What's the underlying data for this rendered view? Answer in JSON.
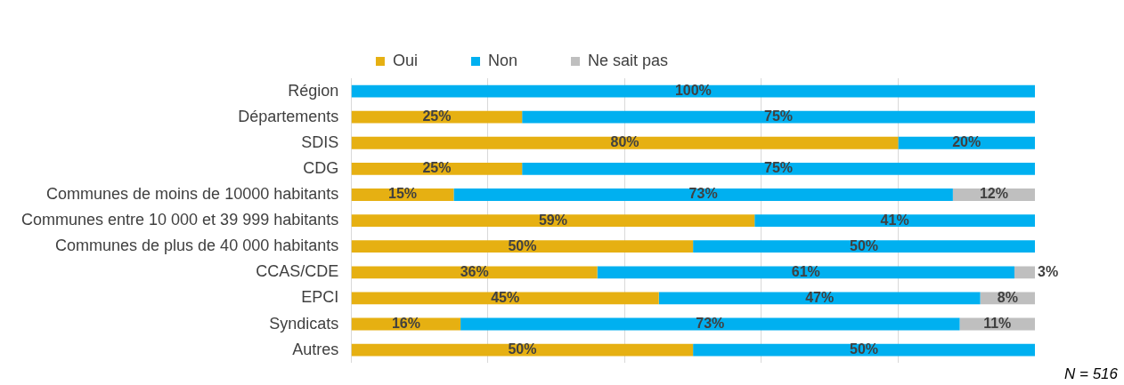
{
  "chart_data": {
    "type": "bar",
    "orientation": "horizontal",
    "stacked": true,
    "categories": [
      "Région",
      "Départements",
      "SDIS",
      "CDG",
      "Communes de moins de 10000 habitants",
      "Communes entre 10 000 et 39 999 habitants",
      "Communes de plus de 40 000 habitants",
      "CCAS/CDE",
      "EPCI",
      "Syndicats",
      "Autres"
    ],
    "series": [
      {
        "name": "Oui",
        "color": "#e6b012",
        "values": [
          0,
          25,
          80,
          25,
          15,
          59,
          50,
          36,
          45,
          16,
          50
        ],
        "value_labels": [
          null,
          "25%",
          "80%",
          "25%",
          "15%",
          "59%",
          "50%",
          "36%",
          "45%",
          "16%",
          "50%"
        ]
      },
      {
        "name": "Non",
        "color": "#00b0f0",
        "values": [
          100,
          75,
          20,
          75,
          73,
          41,
          50,
          61,
          47,
          73,
          50
        ],
        "value_labels": [
          "100%",
          "75%",
          "20%",
          "75%",
          "73%",
          "41%",
          "50%",
          "61%",
          "47%",
          "73%",
          "50%"
        ]
      },
      {
        "name": "Ne sait pas",
        "color": "#bfbfbf",
        "values": [
          0,
          0,
          0,
          0,
          12,
          0,
          0,
          3,
          8,
          11,
          0
        ],
        "value_labels": [
          null,
          null,
          null,
          null,
          "12%",
          null,
          null,
          "3%",
          "8%",
          "11%",
          null
        ]
      }
    ],
    "xlim": [
      0,
      100
    ],
    "xticks": [
      {
        "value": 0,
        "label": null
      },
      {
        "value": 20,
        "label": null
      },
      {
        "value": 40,
        "label": null
      },
      {
        "value": 60,
        "label": null
      },
      {
        "value": 80,
        "label": null
      }
    ],
    "tick_labels": "y",
    "grid": "x",
    "legend": "top",
    "annotations": [
      "N = 516"
    ]
  }
}
